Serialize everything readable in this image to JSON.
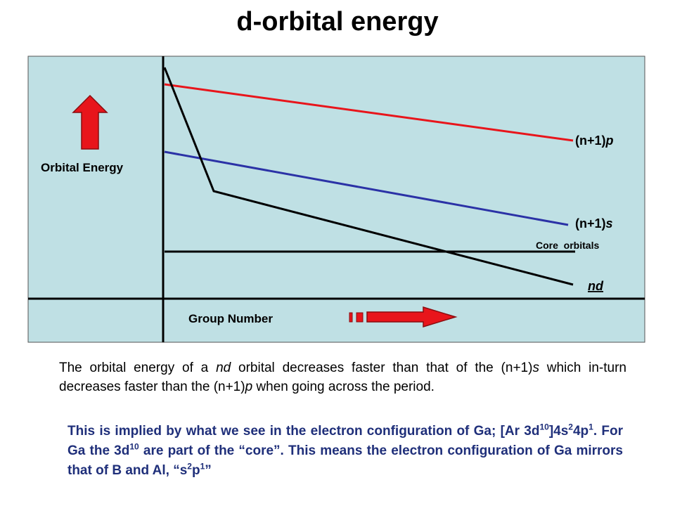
{
  "title": "d-orbital energy",
  "diagram": {
    "y_axis_label": "Orbital Energy",
    "x_axis_label": "Group Number",
    "levels": [
      {
        "prefix": "(n+1)",
        "orbital": "p",
        "color": "#e8151b"
      },
      {
        "prefix": "(n+1)",
        "orbital": "s",
        "color": "#2b32a6"
      },
      {
        "label": "Core  orbitals",
        "color": "#000000"
      },
      {
        "prefix": "n",
        "orbital": "d",
        "color": "#000000"
      }
    ],
    "background_color": "#bfe0e4",
    "arrow_color": "#e8151b"
  },
  "paragraph1": {
    "p1": "The orbital energy of a ",
    "i1": "nd",
    "p2": " orbital decreases faster than that of the (n+1)",
    "i2": "s",
    "p3": " which in-turn decreases faster than the (n+1)",
    "i3": "p",
    "p4": " when going across the period."
  },
  "paragraph2": {
    "t1": "This is implied by what we see in the electron configuration of Ga; [Ar 3d",
    "s1": "10",
    "t2": "]4s",
    "s2": "2",
    "t3": "4p",
    "s3": "1",
    "t4": ". For Ga the 3d",
    "s4": "10",
    "t5": " are part of the “core”.  This means the electron configuration of Ga mirrors that of B and Al, “s",
    "s5": "2",
    "t6": "p",
    "s6": "1",
    "t7": "”"
  }
}
